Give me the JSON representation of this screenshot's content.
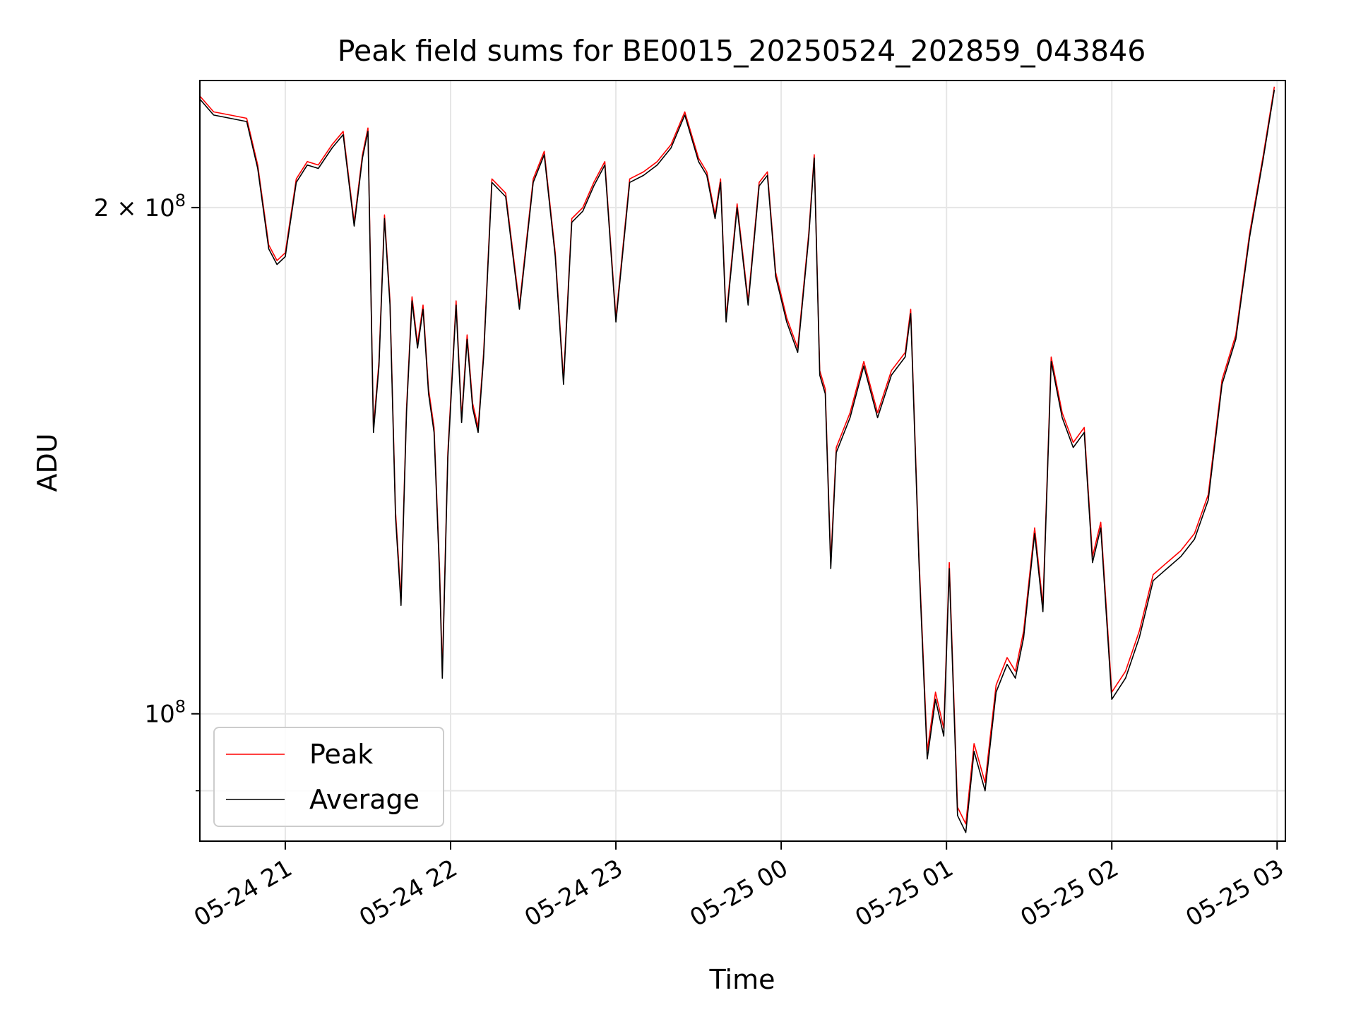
{
  "chart_data": {
    "type": "line",
    "title": "Peak field sums for BE0015_20250524_202859_043846",
    "xlabel": "Time",
    "ylabel": "ADU",
    "yscale": "log",
    "grid": true,
    "legend_position": "lower-left",
    "xlim": [
      "2025-05-24 20:29",
      "2025-05-25 03:03"
    ],
    "ylim": [
      84000000,
      238000000
    ],
    "x_ticks": [
      {
        "value": "2025-05-24 21:00",
        "label": "05-24 21"
      },
      {
        "value": "2025-05-24 22:00",
        "label": "05-24 22"
      },
      {
        "value": "2025-05-24 23:00",
        "label": "05-24 23"
      },
      {
        "value": "2025-05-25 00:00",
        "label": "05-25 00"
      },
      {
        "value": "2025-05-25 01:00",
        "label": "05-25 01"
      },
      {
        "value": "2025-05-25 02:00",
        "label": "05-25 02"
      },
      {
        "value": "2025-05-25 03:00",
        "label": "05-25 03"
      }
    ],
    "y_major_ticks": [
      {
        "value": 100000000,
        "label_base": "10",
        "label_exp": "8"
      },
      {
        "value": 200000000,
        "label_base": "2 × 10",
        "label_exp": "8"
      }
    ],
    "y_minor_gridlines": [
      90000000
    ],
    "series": [
      {
        "name": "Peak",
        "color": "#ff0000",
        "x": [
          "2025-05-24 20:29",
          "2025-05-24 20:34",
          "2025-05-24 20:40",
          "2025-05-24 20:46",
          "2025-05-24 20:50",
          "2025-05-24 20:54",
          "2025-05-24 20:57",
          "2025-05-24 21:00",
          "2025-05-24 21:04",
          "2025-05-24 21:08",
          "2025-05-24 21:12",
          "2025-05-24 21:17",
          "2025-05-24 21:21",
          "2025-05-24 21:25",
          "2025-05-24 21:28",
          "2025-05-24 21:30",
          "2025-05-24 21:32",
          "2025-05-24 21:34",
          "2025-05-24 21:36",
          "2025-05-24 21:38",
          "2025-05-24 21:40",
          "2025-05-24 21:42",
          "2025-05-24 21:44",
          "2025-05-24 21:46",
          "2025-05-24 21:48",
          "2025-05-24 21:50",
          "2025-05-24 21:52",
          "2025-05-24 21:54",
          "2025-05-24 21:56",
          "2025-05-24 21:57",
          "2025-05-24 21:59",
          "2025-05-24 22:02",
          "2025-05-24 22:04",
          "2025-05-24 22:06",
          "2025-05-24 22:08",
          "2025-05-24 22:10",
          "2025-05-24 22:12",
          "2025-05-24 22:15",
          "2025-05-24 22:20",
          "2025-05-24 22:25",
          "2025-05-24 22:30",
          "2025-05-24 22:34",
          "2025-05-24 22:38",
          "2025-05-24 22:41",
          "2025-05-24 22:44",
          "2025-05-24 22:48",
          "2025-05-24 22:52",
          "2025-05-24 22:56",
          "2025-05-24 23:00",
          "2025-05-24 23:05",
          "2025-05-24 23:10",
          "2025-05-24 23:15",
          "2025-05-24 23:20",
          "2025-05-24 23:25",
          "2025-05-24 23:30",
          "2025-05-24 23:33",
          "2025-05-24 23:36",
          "2025-05-24 23:38",
          "2025-05-24 23:40",
          "2025-05-24 23:44",
          "2025-05-24 23:48",
          "2025-05-24 23:52",
          "2025-05-24 23:55",
          "2025-05-24 23:58",
          "2025-05-25 00:02",
          "2025-05-25 00:06",
          "2025-05-25 00:10",
          "2025-05-25 00:12",
          "2025-05-25 00:14",
          "2025-05-25 00:16",
          "2025-05-25 00:18",
          "2025-05-25 00:20",
          "2025-05-25 00:25",
          "2025-05-25 00:30",
          "2025-05-25 00:35",
          "2025-05-25 00:40",
          "2025-05-25 00:45",
          "2025-05-25 00:47",
          "2025-05-25 00:50",
          "2025-05-25 00:53",
          "2025-05-25 00:56",
          "2025-05-25 00:59",
          "2025-05-25 01:01",
          "2025-05-25 01:04",
          "2025-05-25 01:07",
          "2025-05-25 01:10",
          "2025-05-25 01:14",
          "2025-05-25 01:18",
          "2025-05-25 01:22",
          "2025-05-25 01:25",
          "2025-05-25 01:28",
          "2025-05-25 01:32",
          "2025-05-25 01:35",
          "2025-05-25 01:38",
          "2025-05-25 01:42",
          "2025-05-25 01:46",
          "2025-05-25 01:50",
          "2025-05-25 01:53",
          "2025-05-25 01:56",
          "2025-05-25 02:00",
          "2025-05-25 02:05",
          "2025-05-25 02:10",
          "2025-05-25 02:15",
          "2025-05-25 02:20",
          "2025-05-25 02:25",
          "2025-05-25 02:30",
          "2025-05-25 02:35",
          "2025-05-25 02:40",
          "2025-05-25 02:45",
          "2025-05-25 02:50",
          "2025-05-25 02:55",
          "2025-05-25 02:59"
        ],
        "y": [
          233000000,
          228000000,
          227000000,
          226000000,
          212000000,
          190000000,
          186000000,
          188000000,
          208000000,
          213000000,
          212000000,
          218000000,
          222000000,
          196000000,
          215000000,
          223000000,
          148000000,
          162000000,
          198000000,
          176000000,
          132000000,
          117000000,
          152000000,
          177000000,
          166000000,
          175000000,
          156000000,
          148000000,
          122000000,
          106000000,
          143000000,
          176000000,
          150000000,
          168000000,
          153000000,
          148000000,
          164000000,
          208000000,
          204000000,
          175000000,
          208000000,
          216000000,
          188000000,
          158000000,
          197000000,
          200000000,
          207000000,
          213000000,
          172000000,
          208000000,
          210000000,
          213000000,
          218000000,
          228000000,
          214000000,
          210000000,
          198000000,
          208000000,
          172000000,
          201000000,
          176000000,
          207000000,
          210000000,
          183000000,
          172000000,
          165000000,
          193000000,
          215000000,
          160000000,
          156000000,
          123000000,
          144000000,
          151000000,
          162000000,
          151000000,
          160000000,
          164000000,
          174000000,
          124000000,
          95000000,
          103000000,
          98000000,
          123000000,
          88000000,
          86000000,
          96000000,
          91000000,
          104000000,
          108000000,
          106000000,
          112000000,
          129000000,
          116000000,
          163000000,
          151000000,
          145000000,
          148000000,
          124000000,
          130000000,
          103000000,
          106000000,
          112000000,
          121000000,
          123000000,
          125000000,
          128000000,
          135000000,
          158000000,
          168000000,
          193000000,
          215000000,
          236000000
        ]
      },
      {
        "name": "Average",
        "color": "#000000",
        "x": [
          "2025-05-24 20:29",
          "2025-05-24 20:34",
          "2025-05-24 20:40",
          "2025-05-24 20:46",
          "2025-05-24 20:50",
          "2025-05-24 20:54",
          "2025-05-24 20:57",
          "2025-05-24 21:00",
          "2025-05-24 21:04",
          "2025-05-24 21:08",
          "2025-05-24 21:12",
          "2025-05-24 21:17",
          "2025-05-24 21:21",
          "2025-05-24 21:25",
          "2025-05-24 21:28",
          "2025-05-24 21:30",
          "2025-05-24 21:32",
          "2025-05-24 21:34",
          "2025-05-24 21:36",
          "2025-05-24 21:38",
          "2025-05-24 21:40",
          "2025-05-24 21:42",
          "2025-05-24 21:44",
          "2025-05-24 21:46",
          "2025-05-24 21:48",
          "2025-05-24 21:50",
          "2025-05-24 21:52",
          "2025-05-24 21:54",
          "2025-05-24 21:56",
          "2025-05-24 21:57",
          "2025-05-24 21:59",
          "2025-05-24 22:02",
          "2025-05-24 22:04",
          "2025-05-24 22:06",
          "2025-05-24 22:08",
          "2025-05-24 22:10",
          "2025-05-24 22:12",
          "2025-05-24 22:15",
          "2025-05-24 22:20",
          "2025-05-24 22:25",
          "2025-05-24 22:30",
          "2025-05-24 22:34",
          "2025-05-24 22:38",
          "2025-05-24 22:41",
          "2025-05-24 22:44",
          "2025-05-24 22:48",
          "2025-05-24 22:52",
          "2025-05-24 22:56",
          "2025-05-24 23:00",
          "2025-05-24 23:05",
          "2025-05-24 23:10",
          "2025-05-24 23:15",
          "2025-05-24 23:20",
          "2025-05-24 23:25",
          "2025-05-24 23:30",
          "2025-05-24 23:33",
          "2025-05-24 23:36",
          "2025-05-24 23:38",
          "2025-05-24 23:40",
          "2025-05-24 23:44",
          "2025-05-24 23:48",
          "2025-05-24 23:52",
          "2025-05-24 23:55",
          "2025-05-24 23:58",
          "2025-05-25 00:02",
          "2025-05-25 00:06",
          "2025-05-25 00:10",
          "2025-05-25 00:12",
          "2025-05-25 00:14",
          "2025-05-25 00:16",
          "2025-05-25 00:18",
          "2025-05-25 00:20",
          "2025-05-25 00:25",
          "2025-05-25 00:30",
          "2025-05-25 00:35",
          "2025-05-25 00:40",
          "2025-05-25 00:45",
          "2025-05-25 00:47",
          "2025-05-25 00:50",
          "2025-05-25 00:53",
          "2025-05-25 00:56",
          "2025-05-25 00:59",
          "2025-05-25 01:01",
          "2025-05-25 01:04",
          "2025-05-25 01:07",
          "2025-05-25 01:10",
          "2025-05-25 01:14",
          "2025-05-25 01:18",
          "2025-05-25 01:22",
          "2025-05-25 01:25",
          "2025-05-25 01:28",
          "2025-05-25 01:32",
          "2025-05-25 01:35",
          "2025-05-25 01:38",
          "2025-05-25 01:42",
          "2025-05-25 01:46",
          "2025-05-25 01:50",
          "2025-05-25 01:53",
          "2025-05-25 01:56",
          "2025-05-25 02:00",
          "2025-05-25 02:05",
          "2025-05-25 02:10",
          "2025-05-25 02:15",
          "2025-05-25 02:20",
          "2025-05-25 02:25",
          "2025-05-25 02:30",
          "2025-05-25 02:35",
          "2025-05-25 02:40",
          "2025-05-25 02:45",
          "2025-05-25 02:50",
          "2025-05-25 02:55",
          "2025-05-25 02:59"
        ],
        "y": [
          232000000,
          227000000,
          226000000,
          225000000,
          211000000,
          189000000,
          185000000,
          187000000,
          207000000,
          212000000,
          211000000,
          217000000,
          221000000,
          195000000,
          214000000,
          222000000,
          147000000,
          161000000,
          197000000,
          175000000,
          131000000,
          116000000,
          151000000,
          176000000,
          165000000,
          174000000,
          155000000,
          147000000,
          121000000,
          105000000,
          142000000,
          175000000,
          149000000,
          167000000,
          152000000,
          147000000,
          163000000,
          207000000,
          203000000,
          174000000,
          207000000,
          215000000,
          187000000,
          157000000,
          196000000,
          199000000,
          206000000,
          212000000,
          171000000,
          207000000,
          209000000,
          212000000,
          217000000,
          227000000,
          213000000,
          209000000,
          197000000,
          207000000,
          171000000,
          200000000,
          175000000,
          206000000,
          209000000,
          182000000,
          171000000,
          164000000,
          192000000,
          214000000,
          159000000,
          155000000,
          122000000,
          143000000,
          150000000,
          161000000,
          150000000,
          159000000,
          163000000,
          173000000,
          123000000,
          94000000,
          102000000,
          97000000,
          122000000,
          87000000,
          85000000,
          95000000,
          90000000,
          103000000,
          107000000,
          105000000,
          111000000,
          128000000,
          115000000,
          162000000,
          150000000,
          144000000,
          147000000,
          123000000,
          129000000,
          102000000,
          105000000,
          111000000,
          120000000,
          122000000,
          124000000,
          127000000,
          134000000,
          157000000,
          167000000,
          192000000,
          214000000,
          235000000
        ]
      }
    ],
    "legend": [
      {
        "label": "Peak",
        "color": "#ff0000"
      },
      {
        "label": "Average",
        "color": "#000000"
      }
    ]
  }
}
